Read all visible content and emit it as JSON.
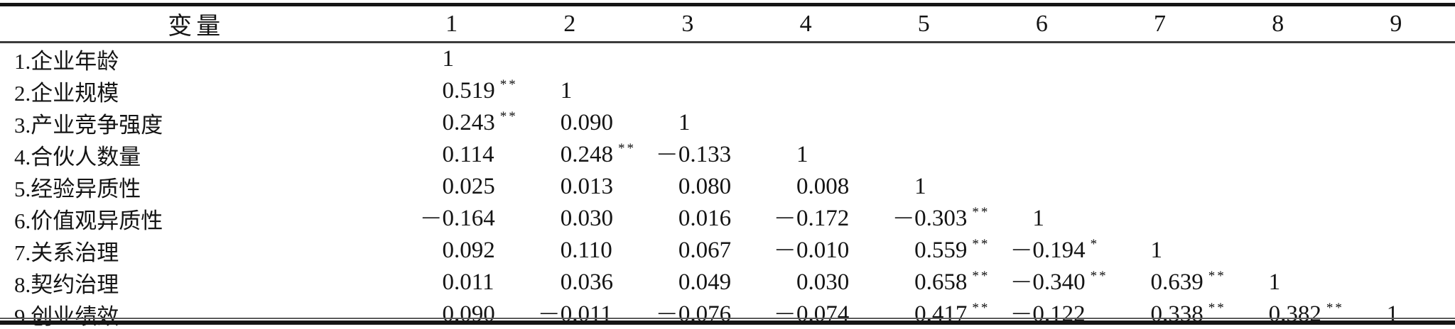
{
  "page": {
    "background": "#ffffff",
    "text_color": "#141414",
    "rule_color": "#151515"
  },
  "table": {
    "header": {
      "variable_label": "变量",
      "columns": [
        "1",
        "2",
        "3",
        "4",
        "5",
        "6",
        "7",
        "8",
        "9"
      ]
    },
    "rows": [
      {
        "label": "1.企业年龄",
        "values": [
          "1",
          "",
          "",
          "",
          "",
          "",
          "",
          "",
          ""
        ]
      },
      {
        "label": "2.企业规模",
        "values": [
          "0.519**",
          "1",
          "",
          "",
          "",
          "",
          "",
          "",
          ""
        ]
      },
      {
        "label": "3.产业竞争强度",
        "values": [
          "0.243**",
          "0.090",
          "1",
          "",
          "",
          "",
          "",
          "",
          ""
        ]
      },
      {
        "label": "4.合伙人数量",
        "values": [
          "0.114",
          "0.248**",
          "−0.133",
          "1",
          "",
          "",
          "",
          "",
          ""
        ]
      },
      {
        "label": "5.经验异质性",
        "values": [
          "0.025",
          "0.013",
          "0.080",
          "0.008",
          "1",
          "",
          "",
          "",
          ""
        ]
      },
      {
        "label": "6.价值观异质性",
        "values": [
          "−0.164",
          "0.030",
          "0.016",
          "−0.172",
          "−0.303**",
          "1",
          "",
          "",
          ""
        ]
      },
      {
        "label": "7.关系治理",
        "values": [
          "0.092",
          "0.110",
          "0.067",
          "−0.010",
          "0.559**",
          "−0.194*",
          "1",
          "",
          ""
        ]
      },
      {
        "label": "8.契约治理",
        "values": [
          "0.011",
          "0.036",
          "0.049",
          "0.030",
          "0.658**",
          "−0.340**",
          "0.639**",
          "1",
          ""
        ]
      },
      {
        "label": "9.创业绩效",
        "values": [
          "0.090",
          "−0.011",
          "−0.076",
          "−0.074",
          "0.417**",
          "−0.122",
          "0.338**",
          "0.382**",
          "1"
        ]
      }
    ]
  }
}
